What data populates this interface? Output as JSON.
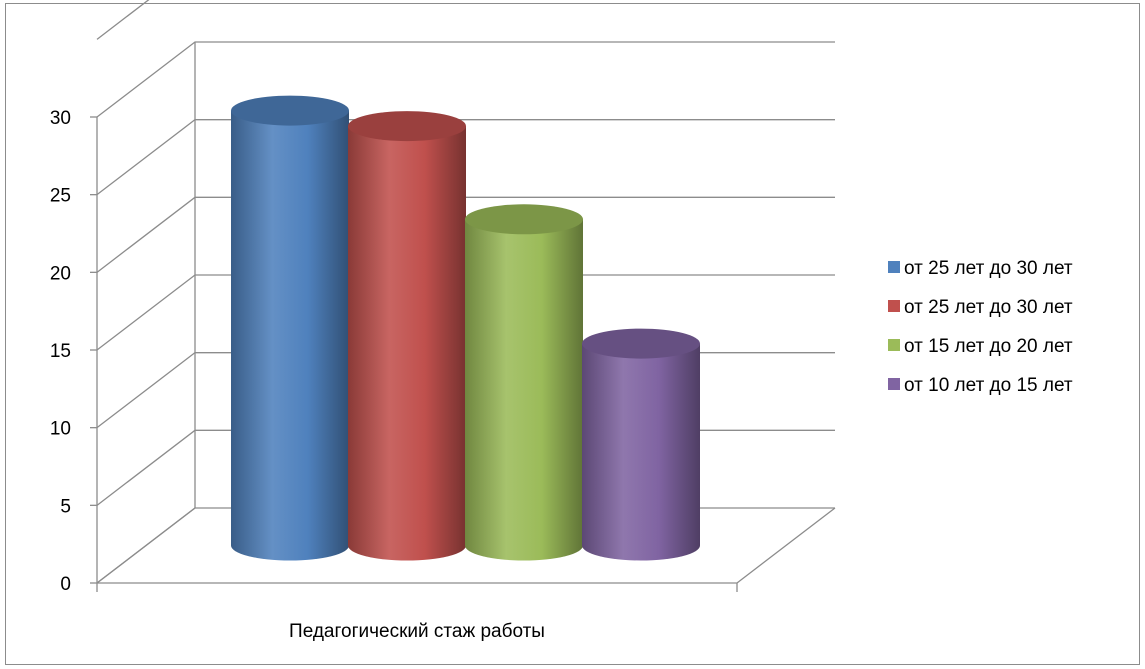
{
  "chart_data": {
    "type": "bar",
    "categories": [
      "Педагогический стаж работы"
    ],
    "series": [
      {
        "name": "от 25 лет до 30 лет",
        "values": [
          28
        ],
        "color": "#4f81bd"
      },
      {
        "name": "от 25 лет до 30 лет",
        "values": [
          27
        ],
        "color": "#c0504d"
      },
      {
        "name": "от 15 лет до 20 лет",
        "values": [
          21
        ],
        "color": "#9bbb59"
      },
      {
        "name": "от 10 лет до 15 лет",
        "values": [
          13
        ],
        "color": "#8064a2"
      }
    ],
    "yticks": [
      0,
      5,
      10,
      15,
      20,
      25,
      30
    ],
    "ylim": [
      0,
      35
    ],
    "grid": true,
    "legend_position": "right",
    "style": "3d-cylinder"
  }
}
